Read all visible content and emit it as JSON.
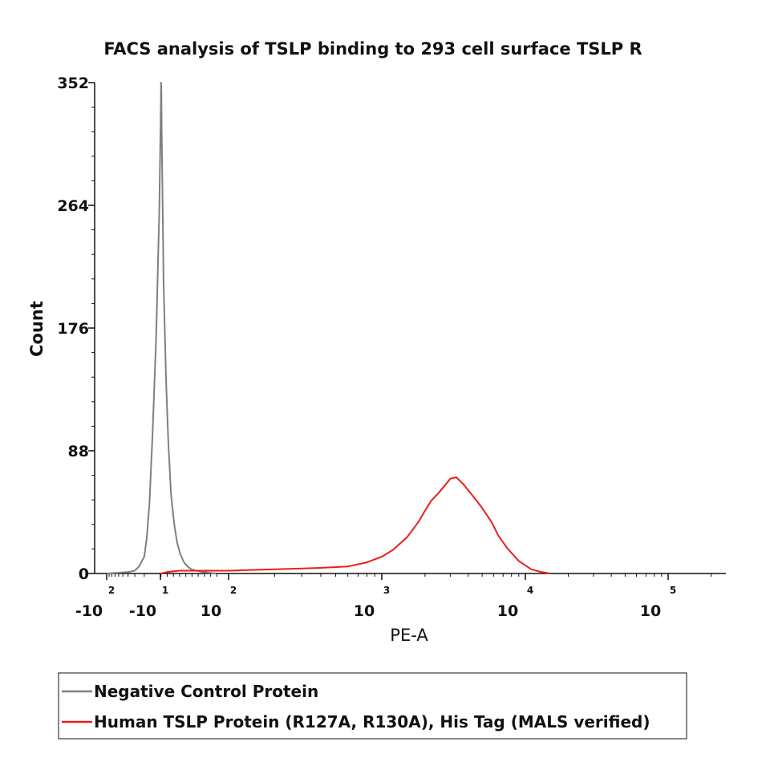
{
  "chart_data": {
    "type": "line",
    "title": "FACS analysis of  TSLP binding to 293 cell surface TSLP R",
    "xlabel": "PE-A",
    "ylabel": "Count",
    "x_scale": "logicle",
    "ylim": [
      0,
      352
    ],
    "y_ticks": [
      "0",
      "88",
      "176",
      "264",
      "352"
    ],
    "x_ticks": [
      {
        "base": "-10",
        "exp": "2",
        "value": -100
      },
      {
        "base": "-10",
        "exp": "1",
        "value": -10
      },
      {
        "base": "10",
        "exp": "2",
        "value": 100
      },
      {
        "base": "10",
        "exp": "3",
        "value": 1000
      },
      {
        "base": "10",
        "exp": "4",
        "value": 10000
      },
      {
        "base": "10",
        "exp": "5",
        "value": 100000
      }
    ],
    "legend_position": "bottom",
    "series": [
      {
        "name": "Negative Control Protein",
        "color": "#808080",
        "points": [
          [
            -100,
            0
          ],
          [
            -40,
            1
          ],
          [
            -30,
            2
          ],
          [
            -25,
            5
          ],
          [
            -20,
            12
          ],
          [
            -18,
            25
          ],
          [
            -16,
            50
          ],
          [
            -14,
            100
          ],
          [
            -12,
            170
          ],
          [
            -10.5,
            260
          ],
          [
            -9.5,
            330
          ],
          [
            -9,
            352
          ],
          [
            -8.5,
            345
          ],
          [
            -8,
            320
          ],
          [
            -7,
            285
          ],
          [
            -6,
            250
          ],
          [
            -5,
            210
          ],
          [
            -3,
            175
          ],
          [
            -1,
            140
          ],
          [
            1,
            115
          ],
          [
            3,
            92
          ],
          [
            5,
            75
          ],
          [
            7,
            58
          ],
          [
            10,
            44
          ],
          [
            13,
            33
          ],
          [
            17,
            22
          ],
          [
            22,
            14
          ],
          [
            28,
            8
          ],
          [
            34,
            5
          ],
          [
            40,
            3
          ],
          [
            48,
            2
          ],
          [
            60,
            1
          ],
          [
            80,
            0
          ]
        ]
      },
      {
        "name": "Human TSLP Protein (R127A, R130A), His Tag (MALS verified)",
        "color": "#ee1c1c",
        "points": [
          [
            -10,
            0
          ],
          [
            0,
            1
          ],
          [
            20,
            2
          ],
          [
            60,
            2
          ],
          [
            100,
            2
          ],
          [
            200,
            3
          ],
          [
            400,
            4
          ],
          [
            600,
            5
          ],
          [
            800,
            8
          ],
          [
            1000,
            12
          ],
          [
            1200,
            17
          ],
          [
            1500,
            26
          ],
          [
            1800,
            37
          ],
          [
            2000,
            45
          ],
          [
            2200,
            52
          ],
          [
            2500,
            58
          ],
          [
            2800,
            64
          ],
          [
            3000,
            68
          ],
          [
            3300,
            69
          ],
          [
            3700,
            64
          ],
          [
            4200,
            57
          ],
          [
            5000,
            47
          ],
          [
            5800,
            37
          ],
          [
            6500,
            27
          ],
          [
            7500,
            18
          ],
          [
            9000,
            9
          ],
          [
            11000,
            3
          ],
          [
            13000,
            1
          ],
          [
            15000,
            0
          ]
        ]
      }
    ]
  }
}
